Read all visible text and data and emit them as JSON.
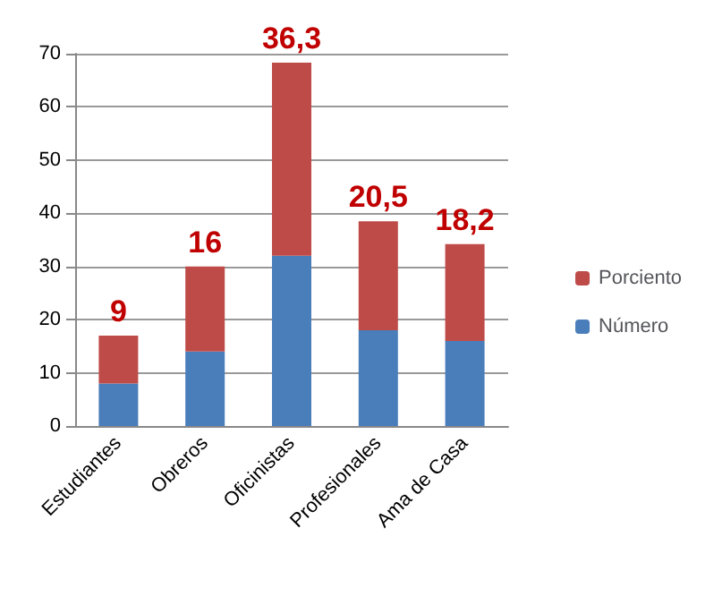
{
  "chart_data": {
    "type": "bar",
    "stacked": true,
    "categories": [
      "Estudiantes",
      "Obreros",
      "Oficinistas",
      "Profesionales",
      "Ama de Casa"
    ],
    "series": [
      {
        "name": "Número",
        "color": "#4a7ebb",
        "values": [
          8,
          14,
          32,
          18,
          16
        ]
      },
      {
        "name": "Porciento",
        "color": "#be4b48",
        "values": [
          9,
          16,
          36.3,
          20.5,
          18.2
        ],
        "value_labels": [
          "9",
          "16",
          "36,3",
          "20,5",
          "18,2"
        ]
      }
    ],
    "ylim": [
      0,
      70
    ],
    "yticks": [
      0,
      10,
      20,
      30,
      40,
      50,
      60,
      70
    ],
    "grid": "y",
    "legend": "right"
  }
}
